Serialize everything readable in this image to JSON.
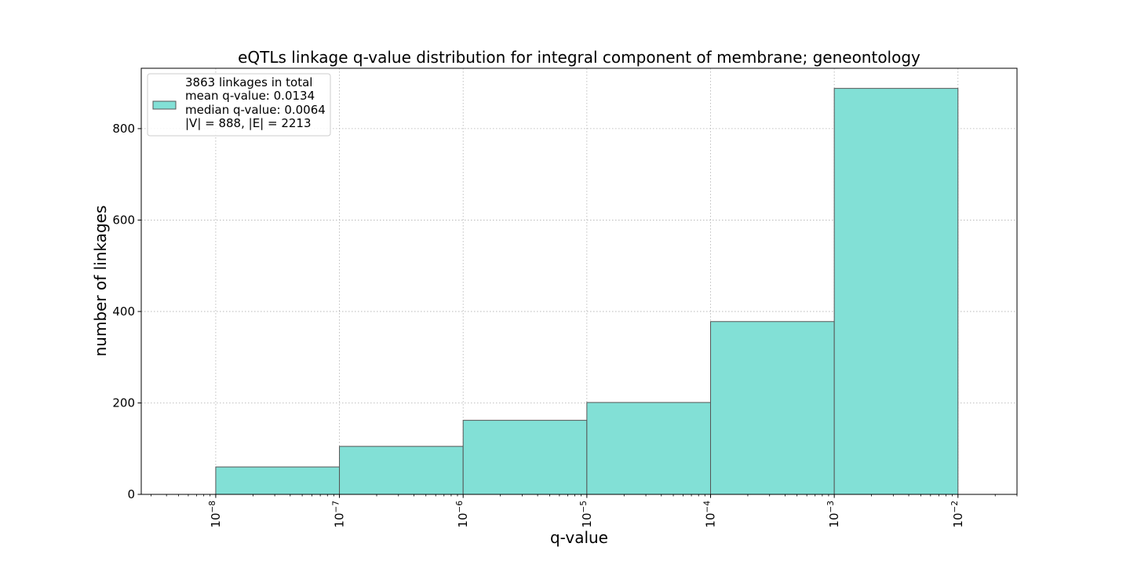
{
  "chart_data": {
    "type": "bar",
    "title": "eQTLs linkage q-value distribution for integral component of membrane; geneontology",
    "xlabel": "q-value",
    "ylabel": "number of linkages",
    "x_scale": "log",
    "xlim": [
      2.5e-09,
      0.03
    ],
    "ylim": [
      0,
      932
    ],
    "grid": true,
    "bar_color": "#82e0d6",
    "edge_color": "#555555",
    "bins": [
      {
        "x0": 1e-08,
        "x1": 1e-07,
        "value": 60
      },
      {
        "x0": 1e-07,
        "x1": 1e-06,
        "value": 105
      },
      {
        "x0": 1e-06,
        "x1": 1e-05,
        "value": 162
      },
      {
        "x0": 1e-05,
        "x1": 0.0001,
        "value": 201
      },
      {
        "x0": 0.0001,
        "x1": 0.001,
        "value": 378
      },
      {
        "x0": 0.001,
        "x1": 0.01,
        "value": 888
      }
    ],
    "y_ticks": [
      0,
      200,
      400,
      600,
      800
    ],
    "y_tick_labels": [
      "0",
      "200",
      "400",
      "600",
      "800"
    ],
    "x_ticks": [
      1e-08,
      1e-07,
      1e-06,
      1e-05,
      0.0001,
      0.001,
      0.01
    ],
    "x_tick_exponents": [
      "−8",
      "−7",
      "−6",
      "−5",
      "−4",
      "−3",
      "−2"
    ],
    "x_tick_base": "10",
    "legend": {
      "placement": "upper-left",
      "lines": [
        "3863 linkages in total",
        "mean q-value: 0.0134",
        "median q-value: 0.0064",
        "|V| = 888, |E| = 2213"
      ]
    }
  }
}
